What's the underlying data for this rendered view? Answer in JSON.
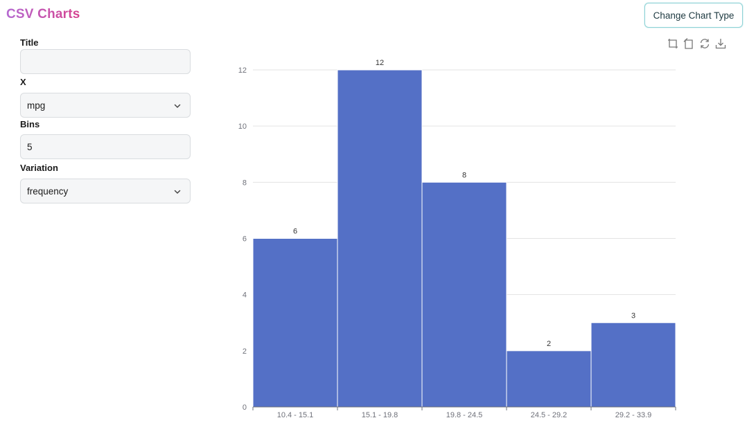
{
  "header": {
    "app_title": "CSV Charts",
    "change_chart_button": "Change Chart Type"
  },
  "form": {
    "title_label": "Title",
    "title_value": "",
    "x_label": "X",
    "x_value": "mpg",
    "bins_label": "Bins",
    "bins_value": "5",
    "variation_label": "Variation",
    "variation_value": "frequency"
  },
  "toolbar": {
    "icons": [
      "zoom-in-icon",
      "zoom-reset-icon",
      "restore-icon",
      "download-icon"
    ]
  },
  "colors": {
    "bar": "#5470c6",
    "accent_border": "#8fd3d6",
    "title_gradient_start": "#b56ad1",
    "title_gradient_end": "#d6418e"
  },
  "chart_data": {
    "type": "bar",
    "categories": [
      "10.4 - 15.1",
      "15.1 - 19.8",
      "19.8 - 24.5",
      "24.5 - 29.2",
      "29.2 - 33.9"
    ],
    "values": [
      6,
      12,
      8,
      2,
      3
    ],
    "title": "",
    "xlabel": "",
    "ylabel": "",
    "ylim": [
      0,
      12
    ],
    "yticks": [
      0,
      2,
      4,
      6,
      8,
      10,
      12
    ],
    "grid": true,
    "data_labels": true
  }
}
